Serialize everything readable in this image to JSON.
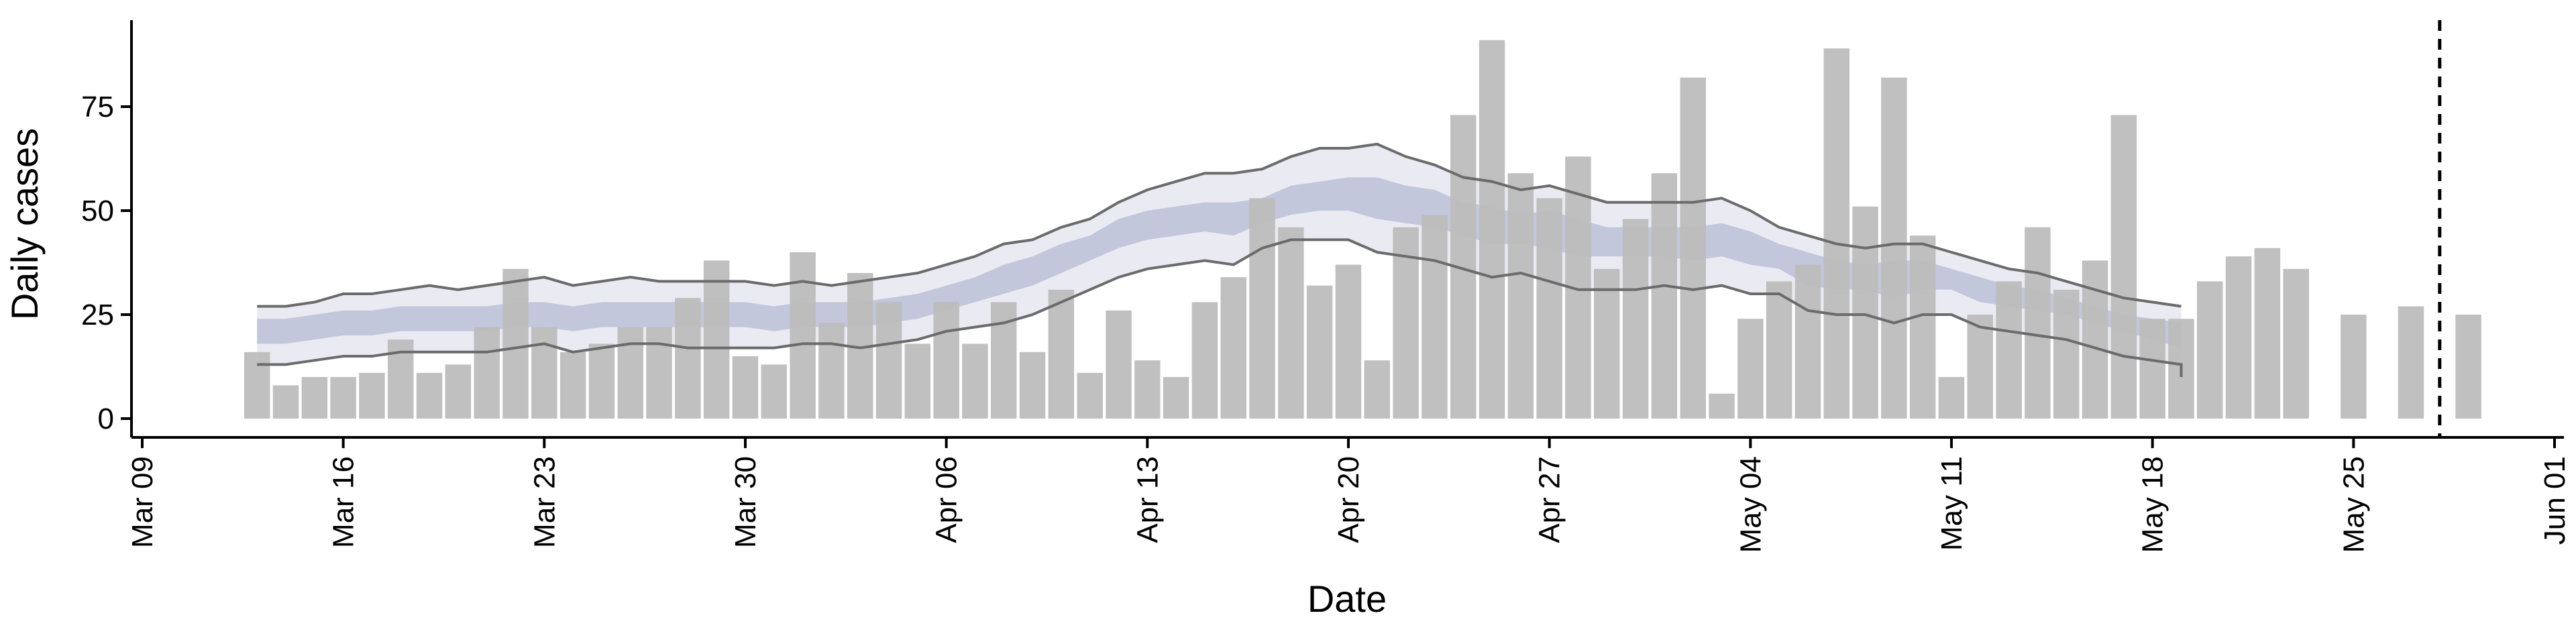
{
  "chart_data": {
    "type": "bar",
    "title": "",
    "xlabel": "Date",
    "ylabel": "Daily cases",
    "x_axis": {
      "type": "date",
      "range": [
        "2020-03-09",
        "2020-06-01"
      ],
      "ticks": [
        "2020-03-09",
        "2020-03-16",
        "2020-03-23",
        "2020-03-30",
        "2020-04-06",
        "2020-04-13",
        "2020-04-20",
        "2020-04-27",
        "2020-05-04",
        "2020-05-11",
        "2020-05-18",
        "2020-05-25",
        "2020-06-01"
      ],
      "tick_labels": [
        "Mar 09",
        "Mar 16",
        "Mar 23",
        "Mar 30",
        "Apr 06",
        "Apr 13",
        "Apr 20",
        "Apr 27",
        "May 04",
        "May 11",
        "May 18",
        "May 25",
        "Jun 01"
      ]
    },
    "y_axis": {
      "ylim": [
        0,
        95
      ],
      "ticks": [
        0,
        25,
        50,
        75
      ]
    },
    "grid": false,
    "vline_date": "2020-05-28",
    "bars": {
      "color": "#bdbdbd",
      "dates": [
        "2020-03-13",
        "2020-03-14",
        "2020-03-15",
        "2020-03-16",
        "2020-03-17",
        "2020-03-18",
        "2020-03-19",
        "2020-03-20",
        "2020-03-21",
        "2020-03-22",
        "2020-03-23",
        "2020-03-24",
        "2020-03-25",
        "2020-03-26",
        "2020-03-27",
        "2020-03-28",
        "2020-03-29",
        "2020-03-30",
        "2020-03-31",
        "2020-04-01",
        "2020-04-02",
        "2020-04-03",
        "2020-04-04",
        "2020-04-05",
        "2020-04-06",
        "2020-04-07",
        "2020-04-08",
        "2020-04-09",
        "2020-04-10",
        "2020-04-11",
        "2020-04-12",
        "2020-04-13",
        "2020-04-14",
        "2020-04-15",
        "2020-04-16",
        "2020-04-17",
        "2020-04-18",
        "2020-04-19",
        "2020-04-20",
        "2020-04-21",
        "2020-04-22",
        "2020-04-23",
        "2020-04-24",
        "2020-04-25",
        "2020-04-26",
        "2020-04-27",
        "2020-04-28",
        "2020-04-29",
        "2020-04-30",
        "2020-05-01",
        "2020-05-02",
        "2020-05-03",
        "2020-05-04",
        "2020-05-05",
        "2020-05-06",
        "2020-05-07",
        "2020-05-08",
        "2020-05-09",
        "2020-05-10",
        "2020-05-11",
        "2020-05-12",
        "2020-05-13",
        "2020-05-14",
        "2020-05-15",
        "2020-05-16",
        "2020-05-17",
        "2020-05-18",
        "2020-05-19",
        "2020-05-20",
        "2020-05-21",
        "2020-05-22",
        "2020-05-23",
        "2020-05-25",
        "2020-05-27",
        "2020-05-29"
      ],
      "values": [
        16,
        8,
        10,
        10,
        11,
        19,
        11,
        13,
        22,
        36,
        22,
        16,
        18,
        22,
        22,
        29,
        38,
        15,
        13,
        40,
        23,
        35,
        28,
        18,
        28,
        18,
        28,
        16,
        31,
        11,
        26,
        14,
        10,
        28,
        34,
        53,
        46,
        32,
        37,
        14,
        46,
        49,
        73,
        91,
        59,
        53,
        63,
        36,
        48,
        59,
        82,
        6,
        24,
        33,
        37,
        89,
        51,
        82,
        44,
        10,
        25,
        33,
        46,
        31,
        38,
        73,
        24,
        24,
        33,
        39,
        41,
        36,
        25,
        27,
        25
      ]
    },
    "bands": {
      "dates": [
        "2020-03-13",
        "2020-03-14",
        "2020-03-15",
        "2020-03-16",
        "2020-03-17",
        "2020-03-18",
        "2020-03-19",
        "2020-03-20",
        "2020-03-21",
        "2020-03-22",
        "2020-03-23",
        "2020-03-24",
        "2020-03-25",
        "2020-03-26",
        "2020-03-27",
        "2020-03-28",
        "2020-03-29",
        "2020-03-30",
        "2020-03-31",
        "2020-04-01",
        "2020-04-02",
        "2020-04-03",
        "2020-04-04",
        "2020-04-05",
        "2020-04-06",
        "2020-04-07",
        "2020-04-08",
        "2020-04-09",
        "2020-04-10",
        "2020-04-11",
        "2020-04-12",
        "2020-04-13",
        "2020-04-14",
        "2020-04-15",
        "2020-04-16",
        "2020-04-17",
        "2020-04-18",
        "2020-04-19",
        "2020-04-20",
        "2020-04-21",
        "2020-04-22",
        "2020-04-23",
        "2020-04-24",
        "2020-04-25",
        "2020-04-26",
        "2020-04-27",
        "2020-04-28",
        "2020-04-29",
        "2020-04-30",
        "2020-05-01",
        "2020-05-02",
        "2020-05-03",
        "2020-05-04",
        "2020-05-05",
        "2020-05-06",
        "2020-05-07",
        "2020-05-08",
        "2020-05-09",
        "2020-05-10",
        "2020-05-11",
        "2020-05-12",
        "2020-05-13",
        "2020-05-14",
        "2020-05-15",
        "2020-05-16",
        "2020-05-17",
        "2020-05-18",
        "2020-05-19"
      ],
      "outer_upper": [
        27,
        27,
        28,
        30,
        30,
        31,
        32,
        31,
        32,
        33,
        34,
        32,
        33,
        34,
        33,
        33,
        33,
        33,
        32,
        33,
        32,
        33,
        34,
        35,
        37,
        39,
        42,
        43,
        46,
        48,
        52,
        55,
        57,
        59,
        59,
        60,
        63,
        65,
        65,
        66,
        63,
        61,
        58,
        57,
        55,
        56,
        54,
        52,
        52,
        52,
        52,
        53,
        50,
        46,
        44,
        42,
        41,
        42,
        42,
        40,
        38,
        36,
        35,
        33,
        31,
        29,
        28,
        27
      ],
      "outer_lower": [
        13,
        13,
        14,
        15,
        15,
        16,
        16,
        16,
        16,
        17,
        18,
        16,
        17,
        18,
        18,
        17,
        17,
        17,
        17,
        18,
        18,
        17,
        18,
        19,
        21,
        22,
        23,
        25,
        28,
        31,
        34,
        36,
        37,
        38,
        37,
        41,
        43,
        43,
        43,
        40,
        39,
        38,
        36,
        34,
        35,
        33,
        31,
        31,
        31,
        32,
        31,
        32,
        30,
        30,
        26,
        25,
        25,
        23,
        25,
        25,
        22,
        21,
        20,
        19,
        17,
        15,
        14,
        13
      ],
      "outer_bottom_end": 10,
      "outer_top_end": 27,
      "inner_upper": [
        24,
        24,
        25,
        26,
        26,
        27,
        27,
        27,
        27,
        28,
        28,
        27,
        28,
        28,
        28,
        28,
        28,
        28,
        27,
        28,
        28,
        28,
        29,
        30,
        32,
        34,
        37,
        39,
        42,
        44,
        48,
        50,
        51,
        52,
        52,
        53,
        56,
        57,
        58,
        58,
        56,
        55,
        52,
        51,
        49,
        50,
        48,
        46,
        46,
        46,
        46,
        47,
        45,
        42,
        40,
        38,
        37,
        38,
        38,
        36,
        34,
        32,
        31,
        29,
        27,
        25,
        24,
        23
      ],
      "inner_lower": [
        18,
        18,
        19,
        20,
        20,
        21,
        21,
        21,
        21,
        22,
        22,
        21,
        22,
        22,
        22,
        22,
        22,
        22,
        21,
        22,
        22,
        22,
        23,
        24,
        26,
        28,
        30,
        32,
        35,
        38,
        41,
        43,
        44,
        45,
        44,
        47,
        49,
        50,
        50,
        48,
        47,
        46,
        44,
        42,
        42,
        41,
        39,
        39,
        39,
        39,
        38,
        39,
        37,
        36,
        32,
        31,
        31,
        29,
        31,
        31,
        28,
        27,
        26,
        25,
        23,
        21,
        19,
        17
      ]
    }
  },
  "colors": {
    "bar": "#bdbdbd",
    "outer_band": "#e6e8f0",
    "inner_band": "#9aa3c3",
    "band_line": "#6b6b6b",
    "axis": "#000000"
  }
}
